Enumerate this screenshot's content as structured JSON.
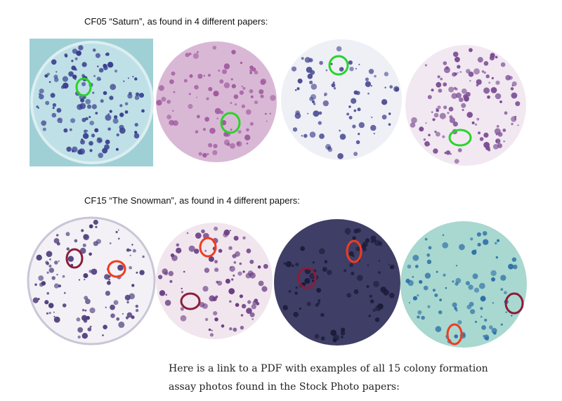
{
  "sections": [
    {
      "caption": "CF05 “Saturn”, as found in 4 different papers:"
    },
    {
      "caption": "CF15 “The Snowman”, as found in 4 different papers:"
    }
  ],
  "paragraph": "Here is a link to a PDF with examples of all 15 colony formation assay photos found in the Stock Photo papers:"
}
